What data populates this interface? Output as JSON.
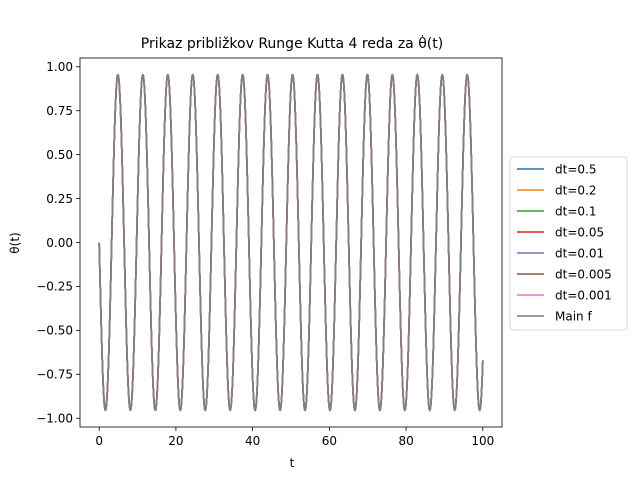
{
  "chart_data": {
    "type": "line",
    "title": "Prikaz približkov Runge Kutta 4 reda za θ̇(t)",
    "xlabel": "t",
    "ylabel": "θ(t)",
    "xlim": [
      -5,
      105
    ],
    "ylim": [
      -1.05,
      1.05
    ],
    "xticks": [
      0,
      20,
      40,
      60,
      80,
      100
    ],
    "yticks": [
      1.0,
      0.75,
      0.5,
      0.25,
      0.0,
      -0.25,
      -0.5,
      -0.75,
      -1.0
    ],
    "xtick_labels": [
      "0",
      "20",
      "40",
      "60",
      "80",
      "100"
    ],
    "ytick_labels": [
      "1.00",
      "0.75",
      "0.50",
      "0.25",
      "0.00",
      "−0.25",
      "−0.50",
      "−0.75",
      "−1.00"
    ],
    "grid": false,
    "legend_position": "outside-right",
    "curve": {
      "form": "theta(t) = -A * sin(omega * t)",
      "amplitude": 0.955,
      "angular_frequency": 0.9661,
      "t_start": 0,
      "t_end": 100,
      "samples": 1200
    },
    "series": [
      {
        "name": "dt=0.5",
        "color": "#1f77b4"
      },
      {
        "name": "dt=0.2",
        "color": "#ff7f0e"
      },
      {
        "name": "dt=0.1",
        "color": "#2ca02c"
      },
      {
        "name": "dt=0.05",
        "color": "#d62728"
      },
      {
        "name": "dt=0.01",
        "color": "#9467bd"
      },
      {
        "name": "dt=0.005",
        "color": "#8c564b"
      },
      {
        "name": "dt=0.001",
        "color": "#e377c2"
      },
      {
        "name": "Main f",
        "color": "#7f7f7f"
      }
    ]
  }
}
